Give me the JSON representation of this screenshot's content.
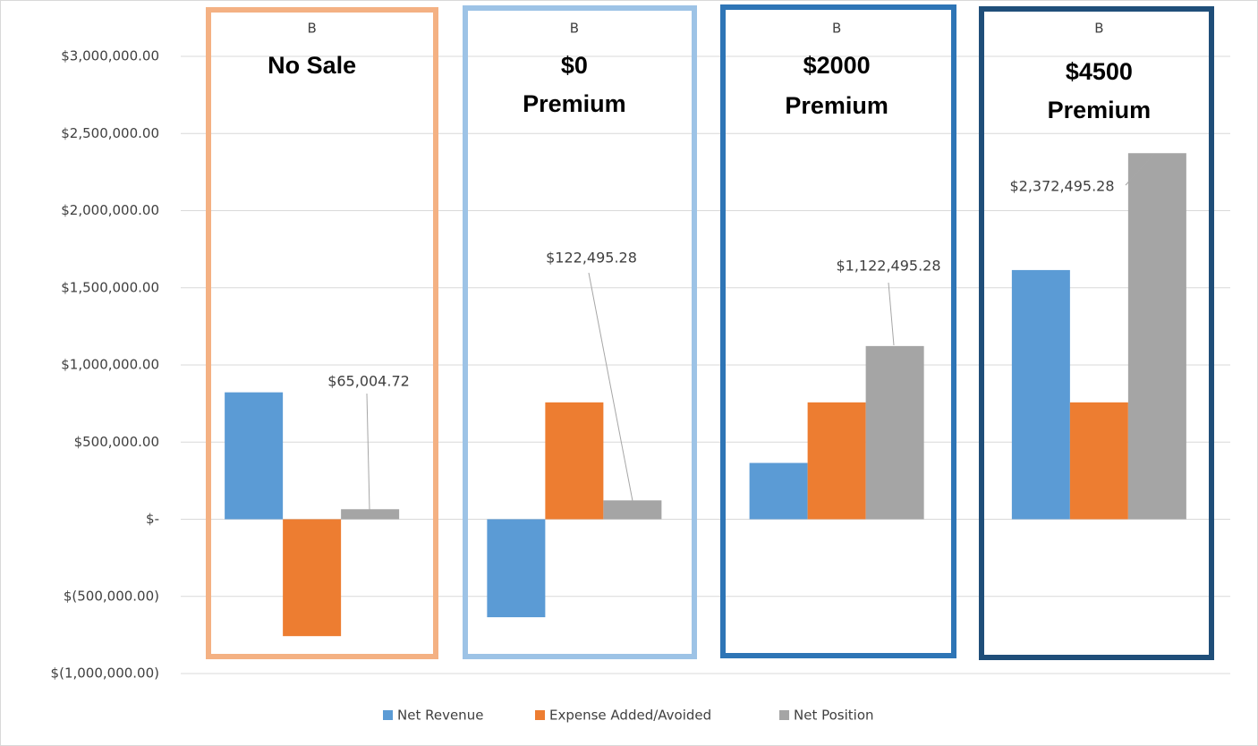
{
  "chart_data": {
    "type": "bar",
    "categories": [
      "B",
      "B",
      "B",
      "B"
    ],
    "annotations": [
      {
        "lines": [
          "No Sale"
        ],
        "color": "#f4b183"
      },
      {
        "lines": [
          "$0",
          "Premium"
        ],
        "color": "#9dc3e6"
      },
      {
        "lines": [
          "$2000",
          "Premium"
        ],
        "color": "#2e75b6"
      },
      {
        "lines": [
          "$4500",
          "Premium"
        ],
        "color": "#1f4e79"
      }
    ],
    "series": [
      {
        "name": "Net Revenue",
        "color": "#5b9bd5",
        "values": [
          822505,
          -635005,
          364995,
          1614995
        ]
      },
      {
        "name": "Expense Added/Avoided",
        "color": "#ed7d31",
        "values": [
          -757500,
          757500,
          757500,
          757500
        ]
      },
      {
        "name": "Net Position",
        "color": "#a5a5a5",
        "values": [
          65004.72,
          122495.28,
          1122495.28,
          2372495.28
        ],
        "value_labels": [
          "$65,004.72",
          "$122,495.28",
          "$1,122,495.28",
          "$2,372,495.28"
        ]
      }
    ],
    "ylim": [
      -1000000,
      3000000
    ],
    "yticks": [
      {
        "value": -1000000,
        "label": "$(1,000,000.00)"
      },
      {
        "value": -500000,
        "label": "$(500,000.00)"
      },
      {
        "value": 0,
        "label": "$-"
      },
      {
        "value": 500000,
        "label": "$500,000.00"
      },
      {
        "value": 1000000,
        "label": "$1,000,000.00"
      },
      {
        "value": 1500000,
        "label": "$1,500,000.00"
      },
      {
        "value": 2000000,
        "label": "$2,000,000.00"
      },
      {
        "value": 2500000,
        "label": "$2,500,000.00"
      },
      {
        "value": 3000000,
        "label": "$3,000,000.00"
      }
    ],
    "grid": true,
    "legend": "bottom"
  }
}
